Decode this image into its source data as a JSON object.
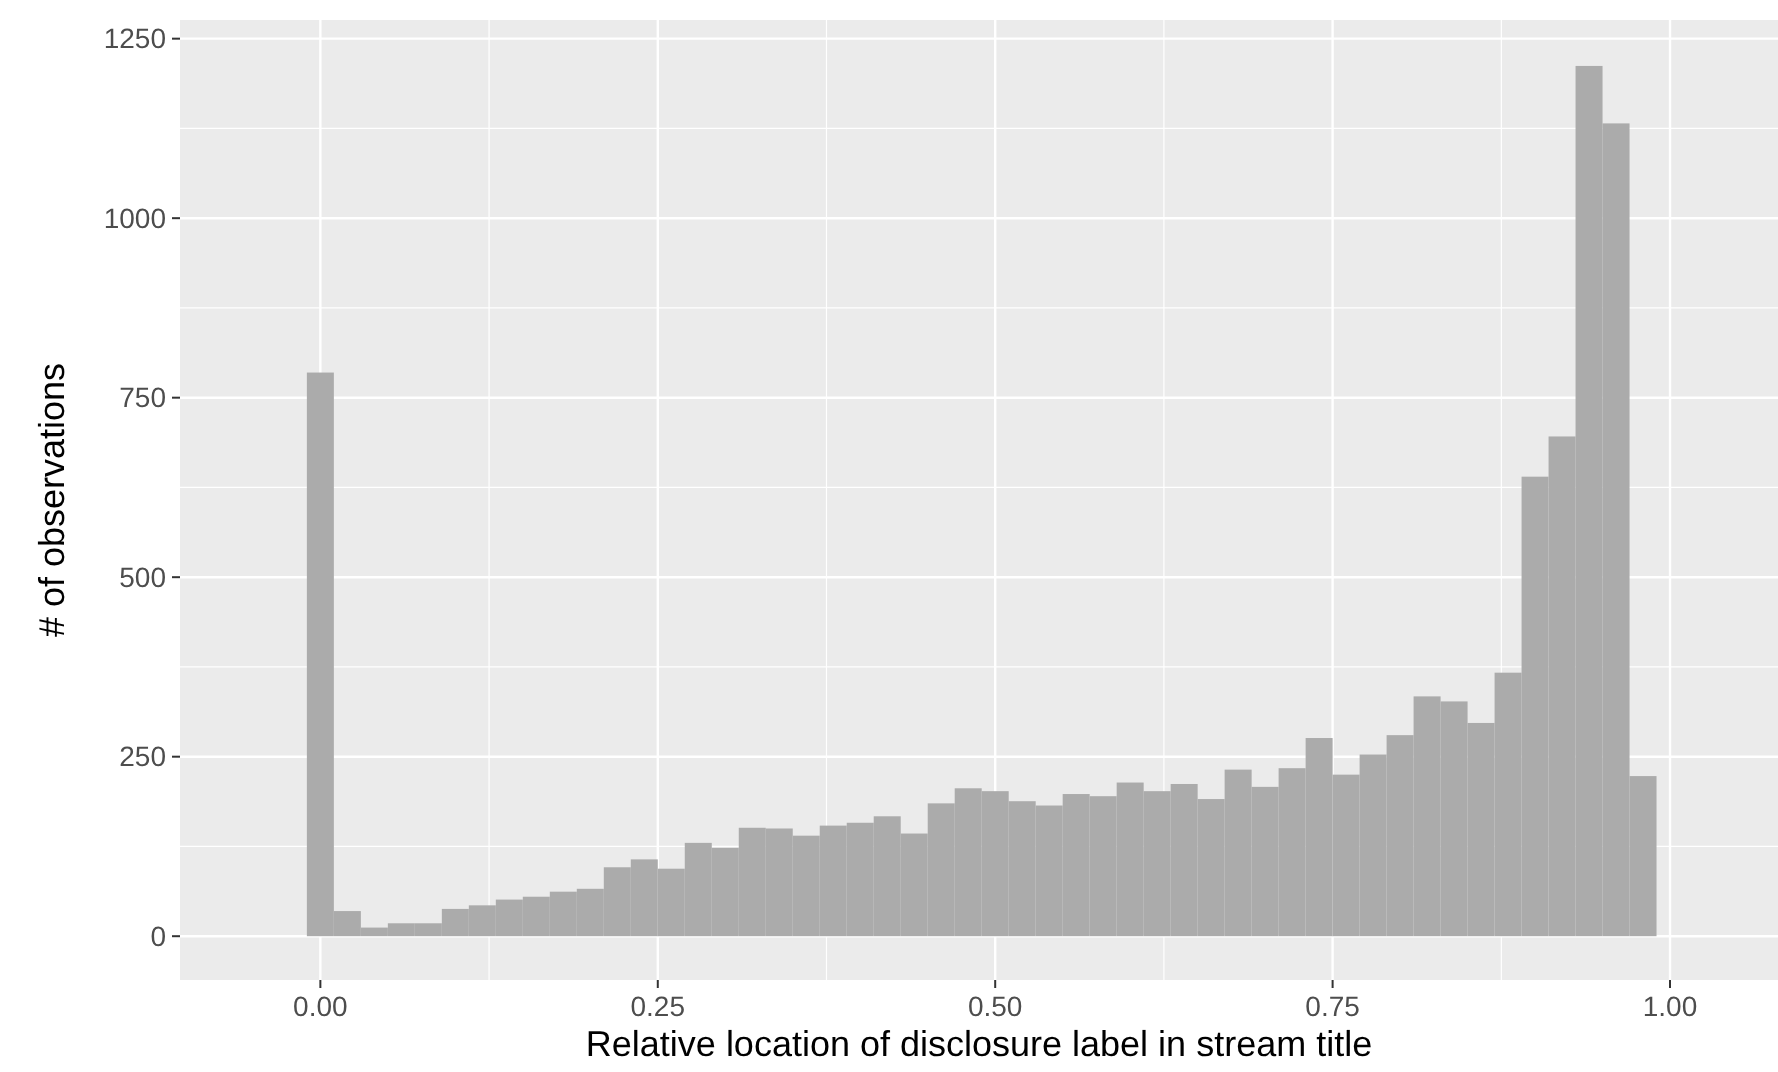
{
  "chart_data": {
    "type": "histogram",
    "xlabel": "Relative location of disclosure label in stream title",
    "ylabel": "# of observations",
    "bins": [
      -0.01,
      0.01,
      0.03,
      0.05,
      0.07,
      0.09,
      0.11,
      0.13,
      0.15,
      0.17,
      0.19,
      0.21,
      0.23,
      0.25,
      0.27,
      0.29,
      0.31,
      0.33,
      0.35,
      0.37,
      0.39,
      0.41,
      0.43,
      0.45,
      0.47,
      0.49,
      0.51,
      0.53,
      0.55,
      0.57,
      0.59,
      0.61,
      0.63,
      0.65,
      0.67,
      0.69,
      0.71,
      0.73,
      0.75,
      0.77,
      0.79,
      0.81,
      0.83,
      0.85,
      0.87,
      0.89,
      0.91,
      0.93,
      0.95,
      0.97,
      0.99
    ],
    "values": [
      785,
      35,
      12,
      18,
      18,
      38,
      43,
      51,
      55,
      62,
      66,
      96,
      107,
      94,
      130,
      123,
      151,
      150,
      140,
      154,
      158,
      167,
      143,
      185,
      206,
      202,
      188,
      182,
      198,
      195,
      214,
      202,
      212,
      191,
      232,
      208,
      234,
      276,
      225,
      253,
      280,
      334,
      327,
      297,
      367,
      640,
      696,
      1212,
      1132,
      223
    ],
    "color": "#ababab",
    "xlim": [
      -0.104,
      1.08
    ],
    "ylim": [
      -61,
      1276
    ],
    "xticks": [
      {
        "value": 0,
        "label": "0.00"
      },
      {
        "value": 0.25,
        "label": "0.25"
      },
      {
        "value": 0.5,
        "label": "0.50"
      },
      {
        "value": 0.75,
        "label": "0.75"
      },
      {
        "value": 1,
        "label": "1.00"
      }
    ],
    "yticks": [
      0,
      250,
      500,
      750,
      1000,
      1250
    ],
    "grid": true
  }
}
